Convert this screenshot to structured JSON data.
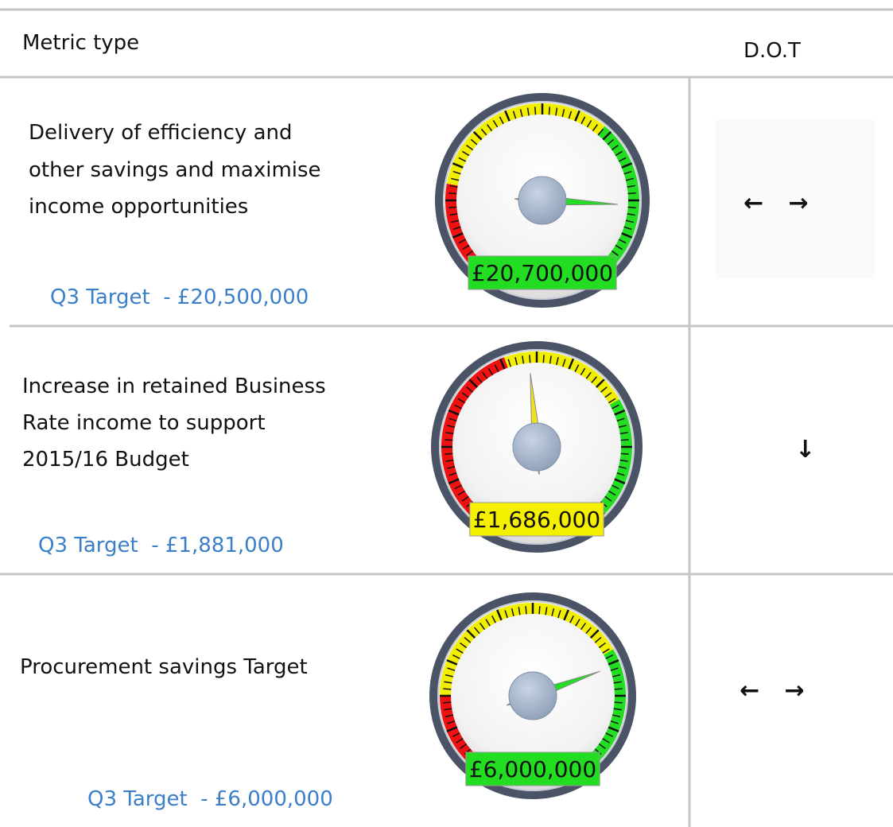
{
  "header": {
    "metric_type": "Metric type",
    "dot": "D.O.T"
  },
  "rows": [
    {
      "metric": [
        "Delivery of efficiency and",
        "other savings and maximise",
        "income opportunities"
      ],
      "target": "Q3 Target  - £20,500,000",
      "gauge_value": "£20,700,000",
      "dot": "←   →"
    },
    {
      "metric": [
        "Increase in retained Business",
        "Rate income to support",
        "2015/16 Budget"
      ],
      "target": "Q3 Target  - £1,881,000",
      "gauge_value": "£1,686,000",
      "dot": "↓"
    },
    {
      "metric": [
        "Procurement savings Target"
      ],
      "target": "Q3 Target  - £6,000,000",
      "gauge_value": "£6,000,000",
      "dot": "←   →"
    }
  ]
}
